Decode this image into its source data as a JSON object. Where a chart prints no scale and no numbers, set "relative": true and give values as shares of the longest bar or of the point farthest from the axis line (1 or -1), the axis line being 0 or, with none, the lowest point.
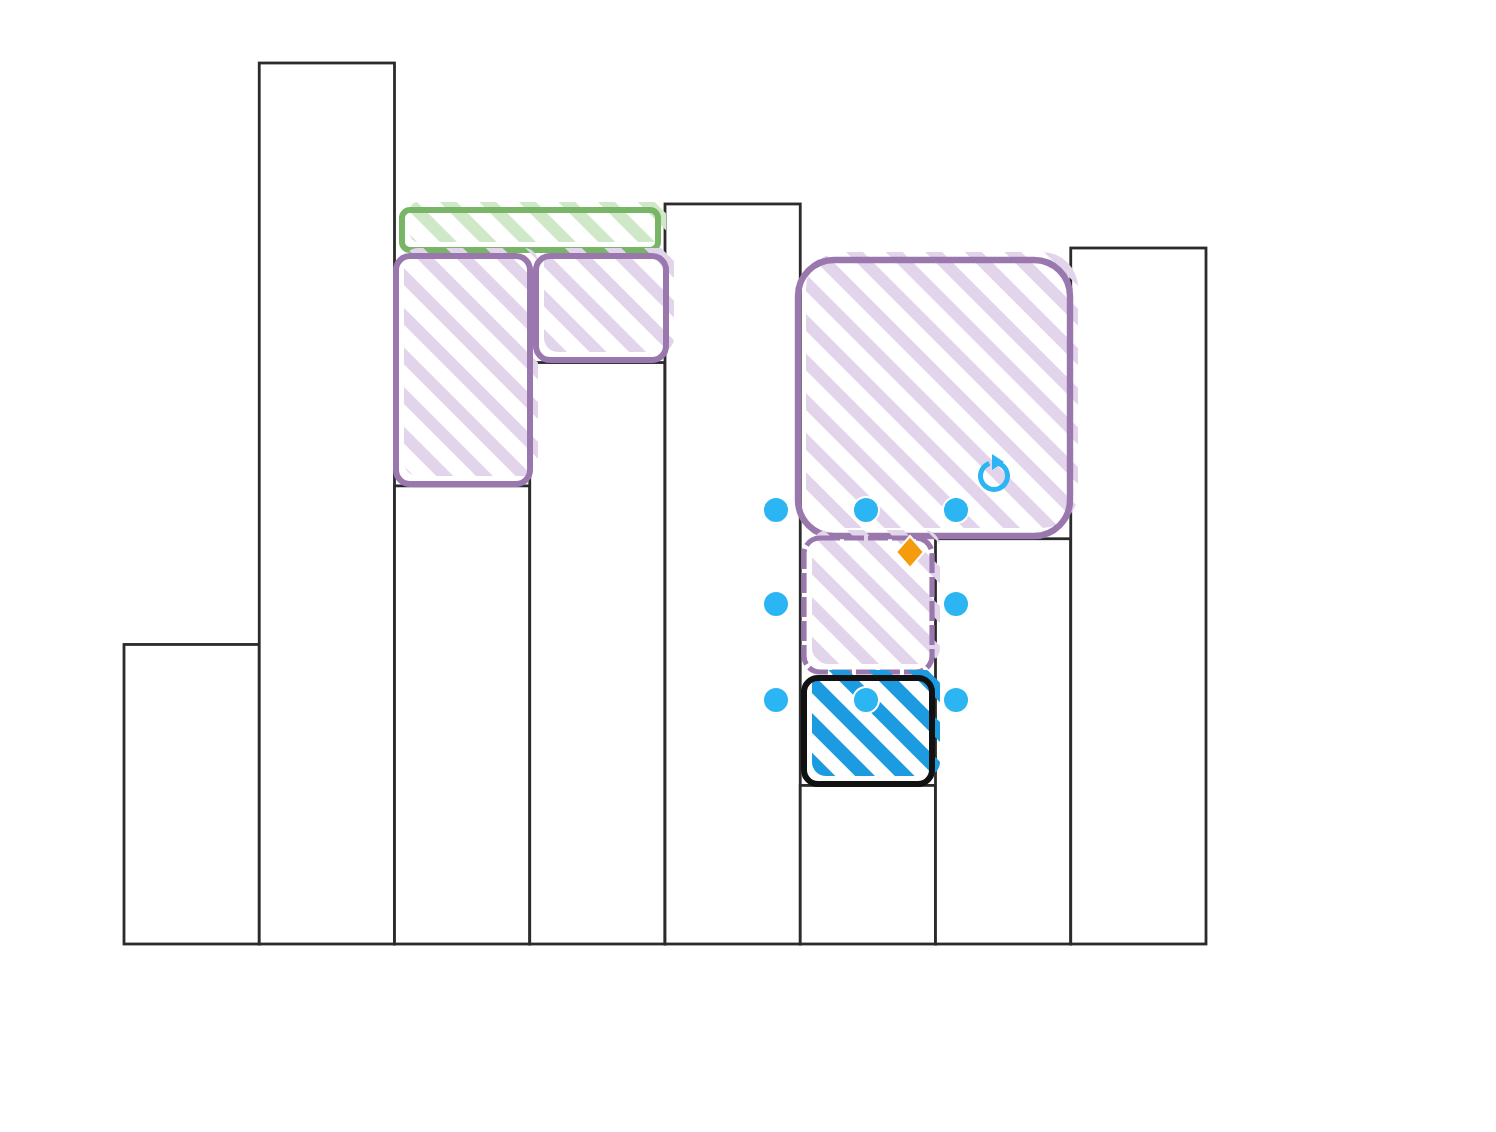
{
  "chart_data": {
    "type": "bar",
    "relative": true,
    "categories": [
      null,
      null,
      null,
      null,
      null,
      null,
      null,
      null
    ],
    "values": [
      0.34,
      1,
      0.52,
      0.66,
      0.84,
      0.18,
      0.46,
      0.79
    ],
    "color": "#ffffff"
  }
}
